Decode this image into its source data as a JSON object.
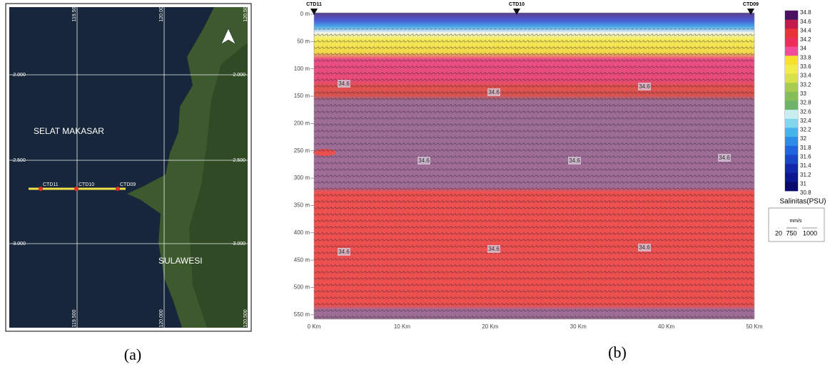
{
  "panel_a": {
    "caption": "(a)",
    "place_labels": [
      "SELAT MAKASAR",
      "SULAWESI"
    ],
    "stations": [
      "CTD11",
      "CTD10",
      "CTD09"
    ],
    "lon_labels": [
      "119.500",
      "120.000",
      "120.500"
    ],
    "lat_labels": [
      "-2.000",
      "-2.500",
      "-3.000"
    ]
  },
  "panel_b": {
    "caption": "(b)",
    "stations": [
      "CTD11",
      "CTD10",
      "CTD09"
    ],
    "depth_labels": [
      "0 m",
      "50 m",
      "100 m",
      "150 m",
      "200 m",
      "250 m",
      "300 m",
      "350 m",
      "400 m",
      "450 m",
      "500 m",
      "550 m"
    ],
    "distance_labels": [
      "0 Km",
      "10 Km",
      "20 Km",
      "30 Km",
      "40 Km",
      "50 Km"
    ],
    "contour_labels": [
      "34.6",
      "34.6",
      "34.6",
      "34.6",
      "34.6",
      "34.6",
      "34.6",
      "34.6",
      "34.6"
    ],
    "colorbar_labels": [
      "34.8",
      "34.6",
      "34.4",
      "34.2",
      "34",
      "33.8",
      "33.6",
      "33.4",
      "33.2",
      "33",
      "32.8",
      "32.6",
      "32.4",
      "32.2",
      "32",
      "31.8",
      "31.6",
      "31.4",
      "31.2",
      "31",
      "30.8"
    ],
    "colorbar_title": "Salinitas(PSU)",
    "vector_legend": {
      "unit": "mm/s",
      "scale": [
        "20",
        "750",
        "1000"
      ]
    }
  }
}
